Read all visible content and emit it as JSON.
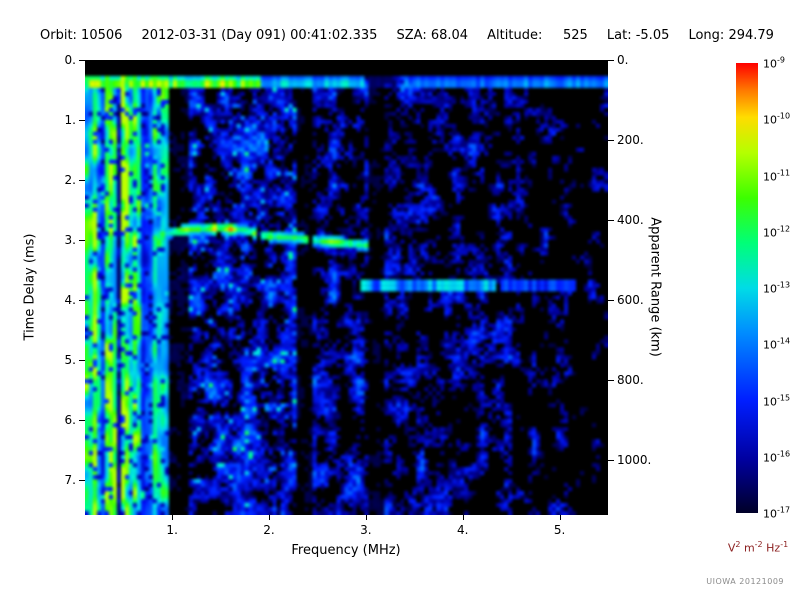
{
  "header": {
    "items": [
      "Orbit: 10506",
      "2012-03-31 (Day 091) 00:41:02.335",
      "SZA: 68.04",
      "Altitude:     525",
      "Lat: -5.05",
      "Long: 294.79"
    ]
  },
  "credit": "UIOWA 20121009",
  "chart_data": {
    "type": "heatmap",
    "xlabel": "Frequency (MHz)",
    "ylabel": "Time Delay (ms)",
    "ylabel_right": "Apparent Range (km)",
    "xlim": [
      0.1,
      5.5
    ],
    "ylim": [
      0,
      7.583
    ],
    "ylim_right": [
      0,
      1137
    ],
    "x_ticks": [
      1,
      2,
      3,
      4,
      5
    ],
    "x_tick_labels": [
      "1.",
      "2.",
      "3.",
      "4.",
      "5."
    ],
    "y_ticks": [
      0,
      1,
      2,
      3,
      4,
      5,
      6,
      7
    ],
    "y_tick_labels": [
      "0.",
      "1.",
      "2.",
      "3.",
      "4.",
      "5.",
      "6.",
      "7."
    ],
    "y_right_ticks": [
      0,
      200,
      400,
      600,
      800,
      1000
    ],
    "y_right_tick_labels": [
      "0.",
      "200.",
      "400.",
      "600.",
      "800.",
      "1000."
    ],
    "colorbar": {
      "scale": "log",
      "min_exp": -17,
      "max_exp": -9,
      "tick_labels": [
        {
          "base": "10",
          "exp": "-9"
        },
        {
          "base": "10",
          "exp": "-10"
        },
        {
          "base": "10",
          "exp": "-11"
        },
        {
          "base": "10",
          "exp": "-12"
        },
        {
          "base": "10",
          "exp": "-13"
        },
        {
          "base": "10",
          "exp": "-14"
        },
        {
          "base": "10",
          "exp": "-15"
        },
        {
          "base": "10",
          "exp": "-16"
        },
        {
          "base": "10",
          "exp": "-17"
        }
      ],
      "units_parts": [
        {
          "base": "V",
          "exp": "2"
        },
        {
          "base": " m",
          "exp": "-2"
        },
        {
          "base": " Hz",
          "exp": "-1"
        }
      ],
      "units_color": "#8b1f1f",
      "stops": [
        [
          0.0,
          "#000028"
        ],
        [
          0.12,
          "#0000a0"
        ],
        [
          0.25,
          "#001eff"
        ],
        [
          0.4,
          "#008cff"
        ],
        [
          0.5,
          "#00dce6"
        ],
        [
          0.6,
          "#00ff78"
        ],
        [
          0.7,
          "#3cff00"
        ],
        [
          0.8,
          "#b4ff00"
        ],
        [
          0.88,
          "#ffdc00"
        ],
        [
          0.94,
          "#ff7800"
        ],
        [
          1.0,
          "#ff0000"
        ]
      ]
    },
    "features": {
      "seed": 7,
      "blank_top_ms": 0.26,
      "top_band": {
        "delay_ms": 0.38,
        "half_width_ms": 0.11,
        "segments": [
          [
            0.1,
            1.9,
            0.72
          ],
          [
            1.9,
            3.0,
            0.45
          ],
          [
            3.0,
            3.4,
            0.06
          ],
          [
            3.4,
            4.4,
            0.35
          ],
          [
            4.4,
            5.5,
            0.38
          ]
        ]
      },
      "plasma_stripes": {
        "f_max": 0.95,
        "max_intensity": 0.8
      },
      "echo_trace": {
        "f_min": 0.8,
        "f_max": 3.08,
        "half_width_ms": 0.09,
        "intensity": 0.7,
        "hot_range": [
          1.35,
          1.65
        ],
        "points": [
          [
            0.85,
            2.95
          ],
          [
            1.0,
            2.87
          ],
          [
            1.2,
            2.82
          ],
          [
            1.5,
            2.8
          ],
          [
            1.75,
            2.84
          ],
          [
            1.95,
            2.93
          ],
          [
            2.3,
            2.97
          ],
          [
            2.55,
            3.02
          ],
          [
            2.85,
            3.06
          ],
          [
            3.08,
            3.1
          ]
        ]
      },
      "dark_columns": [
        [
          0.97,
          1.16
        ],
        [
          2.28,
          2.44
        ],
        [
          3.03,
          3.2
        ]
      ],
      "streaks": [
        {
          "f_min": 2.95,
          "f_max": 4.35,
          "delay_ms": 3.76,
          "half_width_ms": 0.1,
          "intensity": 0.45
        },
        {
          "f_min": 4.4,
          "f_max": 5.15,
          "delay_ms": 3.76,
          "half_width_ms": 0.08,
          "intensity": 0.28
        }
      ],
      "noise_regions": [
        {
          "f_min": 0.1,
          "f_max": 0.95,
          "cut": 0.4,
          "amp": 0.5
        },
        {
          "f_min": 0.95,
          "f_max": 2.3,
          "cut": 0.4,
          "amp": 0.52
        },
        {
          "f_min": 2.3,
          "f_max": 3.5,
          "cut": 0.46,
          "amp": 0.47
        },
        {
          "f_min": 3.5,
          "f_max": 4.5,
          "cut": 0.5,
          "amp": 0.45
        },
        {
          "f_min": 4.5,
          "f_max": 5.1,
          "cut": 0.58,
          "amp": 0.4
        },
        {
          "f_min": 5.1,
          "f_max": 5.5,
          "cut": 0.66,
          "amp": 0.35
        }
      ]
    }
  }
}
